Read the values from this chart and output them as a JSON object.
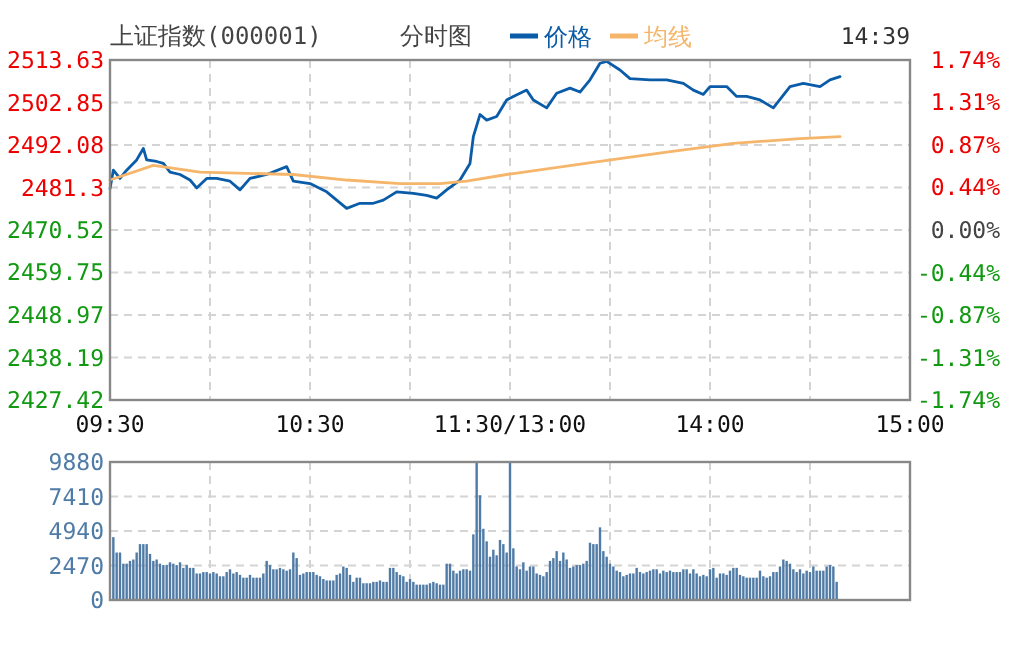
{
  "chart_data": [
    {
      "type": "line",
      "title": "上证指数(000001)",
      "subtitle": "分时图",
      "annotations": [
        "14:39"
      ],
      "legend": "top",
      "grid": true,
      "categories": [
        "09:30",
        null,
        null,
        null,
        null,
        null,
        null,
        null,
        null,
        null,
        null,
        null,
        null,
        null,
        null,
        null,
        null,
        null,
        null,
        null,
        null,
        null,
        null,
        null,
        null,
        null,
        null,
        null,
        null,
        null,
        null,
        null,
        null,
        null,
        null,
        null,
        null,
        null,
        null,
        null,
        null,
        null,
        null,
        null,
        null,
        null,
        null,
        null,
        null,
        null,
        null,
        null,
        null,
        null,
        null,
        null,
        null,
        null,
        null,
        null,
        "10:30",
        null,
        null,
        null,
        null,
        null,
        null,
        null,
        null,
        null,
        null,
        null,
        null,
        null,
        null,
        null,
        null,
        null,
        null,
        null,
        null,
        null,
        null,
        null,
        null,
        null,
        null,
        null,
        null,
        null,
        null,
        null,
        null,
        null,
        null,
        null,
        null,
        null,
        null,
        null,
        null,
        null,
        null,
        null,
        null,
        null,
        null,
        null,
        null,
        null,
        null,
        null,
        null,
        null,
        null,
        null,
        null,
        null,
        null,
        null,
        "11:30/13:00",
        null,
        null,
        null,
        null,
        null,
        null,
        null,
        null,
        null,
        null,
        null,
        null,
        null,
        null,
        null,
        null,
        null,
        null,
        null,
        null,
        null,
        null,
        null,
        null,
        null,
        null,
        null,
        null,
        null,
        null,
        null,
        null,
        null,
        null,
        null,
        null,
        null,
        null,
        null,
        null,
        null,
        null,
        null,
        null,
        null,
        null,
        null,
        null,
        null,
        null,
        null,
        null,
        null,
        null,
        null,
        null,
        null,
        null,
        null,
        "14:00",
        null,
        null,
        null,
        null,
        null,
        null,
        null,
        null,
        null,
        null,
        null,
        null,
        null,
        null,
        null,
        null,
        null,
        null,
        null,
        null,
        null,
        null,
        null,
        null,
        null,
        null,
        null,
        null,
        null,
        null,
        null,
        null,
        null,
        null,
        null,
        null,
        null,
        null,
        null,
        null,
        null,
        null,
        null,
        null,
        null,
        null,
        null,
        null,
        null,
        null,
        null,
        null,
        null,
        null,
        null,
        null,
        null,
        null,
        null,
        "15:00"
      ],
      "ylim": [
        2427.42,
        2513.63
      ],
      "yticks": [
        2427.42,
        2438.19,
        2448.97,
        2459.75,
        2470.52,
        2481.3,
        2492.08,
        2502.85,
        2513.63
      ],
      "y2lim": [
        -1.74,
        1.74
      ],
      "y2ticks": [
        {
          "value": -1.74,
          "label": "-1.74%"
        },
        {
          "value": -1.31,
          "label": "-1.31%"
        },
        {
          "value": -0.87,
          "label": "-0.87%"
        },
        {
          "value": -0.44,
          "label": "-0.44%"
        },
        {
          "value": 0,
          "label": "0.00%"
        },
        {
          "value": 0.44,
          "label": "0.44%"
        },
        {
          "value": 0.87,
          "label": "0.87%"
        },
        {
          "value": 1.31,
          "label": "1.31%"
        },
        {
          "value": 1.74,
          "label": "1.74%"
        }
      ],
      "series": [
        {
          "name": "价格",
          "color": "#0b5ca8",
          "values": [
            2481.0,
            2485.7,
            null,
            2483.6,
            null,
            2485.7,
            null,
            null,
            2488.3,
            null,
            2491.2,
            2488.3,
            null,
            null,
            2487.9,
            null,
            2487.4,
            null,
            2485.2,
            null,
            null,
            2484.6,
            null,
            null,
            2483.2,
            null,
            2481.2,
            null,
            null,
            2483.6,
            null,
            null,
            2483.6,
            null,
            null,
            null,
            2482.9,
            null,
            null,
            2480.7,
            null,
            null,
            2483.6,
            null,
            null,
            null,
            null,
            2484.6,
            null,
            null,
            null,
            null,
            null,
            2486.6,
            null,
            2482.9,
            null,
            null,
            null,
            null,
            2482.3,
            null,
            null,
            null,
            null,
            2480.2,
            null,
            null,
            2478.1,
            null,
            null,
            2476.0,
            null,
            null,
            null,
            2477.3,
            null,
            null,
            null,
            2477.3,
            null,
            null,
            2478.1,
            null,
            null,
            null,
            2480.2,
            null,
            null,
            null,
            null,
            2479.8,
            null,
            null,
            null,
            2479.3,
            null,
            null,
            2478.6,
            null,
            null,
            2480.7,
            null,
            null,
            null,
            2483.2,
            null,
            null,
            2487.4,
            2494.2,
            null,
            2499.8,
            null,
            2498.4,
            null,
            null,
            2499.3,
            null,
            null,
            2503.5,
            null,
            2504.4,
            null,
            null,
            null,
            2506.0,
            null,
            2503.5,
            null,
            null,
            null,
            2501.5,
            null,
            null,
            2505.2,
            null,
            null,
            null,
            2506.5,
            null,
            null,
            2505.5,
            null,
            null,
            2508.6,
            null,
            null,
            2512.8,
            null,
            2513.3,
            null,
            null,
            null,
            2511.1,
            null,
            null,
            2508.9,
            null,
            null,
            null,
            null,
            null,
            2508.6,
            null,
            null,
            null,
            null,
            2508.6,
            null,
            null,
            null,
            null,
            2507.7,
            null,
            null,
            2506.0,
            null,
            null,
            2504.9,
            null,
            2506.9,
            null,
            null,
            null,
            null,
            2506.9,
            null,
            null,
            2504.4,
            null,
            null,
            2504.4,
            null,
            null,
            null,
            2503.5,
            null,
            null,
            null,
            2501.5,
            null,
            null,
            null,
            null,
            2506.9,
            null,
            null,
            null,
            2507.7,
            null,
            null,
            null,
            null,
            2506.9,
            null,
            null,
            2508.6,
            null,
            null,
            2509.4,
            null,
            null,
            null,
            null,
            null,
            null,
            null,
            null,
            null,
            null,
            null,
            null,
            null,
            null,
            null,
            null,
            null,
            null,
            null,
            null,
            null
          ]
        },
        {
          "name": "均线",
          "color": "#f5b66b",
          "values": [
            2483.2,
            null,
            null,
            null,
            null,
            null,
            null,
            null,
            null,
            null,
            null,
            null,
            null,
            2486.9,
            null,
            null,
            null,
            null,
            null,
            null,
            null,
            null,
            null,
            null,
            null,
            null,
            null,
            2485.2,
            null,
            null,
            null,
            null,
            null,
            null,
            null,
            null,
            null,
            null,
            null,
            null,
            null,
            null,
            null,
            null,
            null,
            null,
            null,
            null,
            null,
            null,
            null,
            null,
            null,
            null,
            null,
            2484.6,
            null,
            null,
            null,
            null,
            null,
            null,
            null,
            null,
            null,
            null,
            null,
            null,
            null,
            null,
            null,
            2483.2,
            null,
            null,
            null,
            null,
            null,
            null,
            null,
            null,
            null,
            null,
            null,
            null,
            null,
            null,
            null,
            2482.3,
            null,
            null,
            null,
            null,
            null,
            null,
            null,
            null,
            null,
            null,
            null,
            2482.3,
            null,
            null,
            null,
            null,
            null,
            null,
            null,
            2482.9,
            null,
            null,
            null,
            null,
            null,
            null,
            null,
            null,
            null,
            null,
            null,
            2484.6,
            null,
            null,
            null,
            null,
            null,
            null,
            null,
            null,
            null,
            null,
            null,
            null,
            null,
            null,
            null,
            null,
            null,
            null,
            null,
            null,
            null,
            null,
            null,
            null,
            null,
            null,
            null,
            2487.9,
            null,
            null,
            null,
            null,
            null,
            null,
            null,
            null,
            null,
            null,
            null,
            null,
            null,
            null,
            null,
            null,
            null,
            null,
            null,
            2490.3,
            null,
            null,
            null,
            null,
            null,
            null,
            null,
            null,
            null,
            null,
            null,
            null,
            null,
            null,
            null,
            null,
            null,
            null,
            null,
            2492.5,
            null,
            null,
            null,
            null,
            null,
            null,
            null,
            null,
            null,
            null,
            null,
            null,
            null,
            null,
            null,
            null,
            null,
            null,
            null,
            2493.7,
            null,
            null,
            null,
            null,
            null,
            null,
            null,
            null,
            null,
            null,
            null,
            2494.2,
            null,
            null,
            null,
            null,
            null,
            null,
            null,
            null,
            null,
            null,
            null,
            null,
            null,
            null,
            null,
            null,
            null,
            null,
            null,
            null,
            null
          ]
        }
      ]
    },
    {
      "type": "bar",
      "grid": true,
      "tick_labels": "y",
      "categories": [
        null,
        null,
        null,
        null,
        null,
        null,
        null,
        null,
        null,
        null,
        null,
        null,
        null,
        null,
        null,
        null,
        null,
        null,
        null,
        null,
        null,
        null,
        null,
        null,
        null,
        null,
        null,
        null,
        null,
        null,
        null,
        null,
        null,
        null,
        null,
        null,
        null,
        null,
        null,
        null,
        null,
        null,
        null,
        null,
        null,
        null,
        null,
        null,
        null,
        null,
        null,
        null,
        null,
        null,
        null,
        null,
        null,
        null,
        null,
        null,
        null,
        null,
        null,
        null,
        null,
        null,
        null,
        null,
        null,
        null,
        null,
        null,
        null,
        null,
        null,
        null,
        null,
        null,
        null,
        null,
        null,
        null,
        null,
        null,
        null,
        null,
        null,
        null,
        null,
        null,
        null,
        null,
        null,
        null,
        null,
        null,
        null,
        null,
        null,
        null,
        null,
        null,
        null,
        null,
        null,
        null,
        null,
        null,
        null,
        null,
        null,
        null,
        null,
        null,
        null,
        null,
        null,
        null,
        null,
        null,
        null,
        null,
        null,
        null,
        null,
        null,
        null,
        null,
        null,
        null,
        null,
        null,
        null,
        null,
        null,
        null,
        null,
        null,
        null,
        null,
        null,
        null,
        null,
        null,
        null,
        null,
        null,
        null,
        null,
        null,
        null,
        null,
        null,
        null,
        null,
        null,
        null,
        null,
        null,
        null,
        null,
        null,
        null,
        null,
        null,
        null,
        null,
        null,
        null,
        null,
        null,
        null,
        null,
        null,
        null,
        null,
        null,
        null,
        null,
        null,
        null,
        null,
        null,
        null,
        null,
        null,
        null,
        null,
        null,
        null,
        null,
        null,
        null,
        null,
        null,
        null,
        null,
        null,
        null,
        null,
        null,
        null,
        null,
        null,
        null,
        null,
        null,
        null,
        null,
        null,
        null,
        null,
        null,
        null,
        null,
        null,
        null,
        null,
        null,
        null,
        null,
        null,
        null,
        null,
        null,
        null,
        null,
        null,
        null,
        null,
        null,
        null,
        null,
        null,
        null,
        null,
        null,
        null,
        null,
        null,
        null
      ],
      "ylim": [
        0,
        9880
      ],
      "yticks": [
        0,
        2470,
        4940,
        7410,
        9880
      ],
      "series": [
        {
          "color": "#4f7ba6",
          "values": [
            null,
            4500,
            3400,
            3400,
            2600,
            2600,
            2800,
            2900,
            3400,
            4000,
            4000,
            4000,
            3300,
            2800,
            2900,
            2600,
            2500,
            2500,
            2700,
            2600,
            2500,
            2700,
            2300,
            2500,
            2300,
            2300,
            1900,
            1900,
            2000,
            2000,
            1900,
            2000,
            1900,
            1700,
            1700,
            2000,
            2200,
            1900,
            2000,
            1800,
            1600,
            1600,
            1800,
            1600,
            1600,
            1600,
            1900,
            2800,
            2500,
            2200,
            2200,
            2300,
            2200,
            2100,
            2200,
            3400,
            3000,
            1800,
            1900,
            2000,
            2000,
            2000,
            1800,
            1700,
            1500,
            1400,
            1400,
            1400,
            1800,
            1900,
            2400,
            2300,
            1800,
            1300,
            1600,
            1600,
            1200,
            1200,
            1200,
            1300,
            1300,
            1400,
            1300,
            1300,
            2300,
            2300,
            2000,
            1800,
            1700,
            1300,
            1500,
            1300,
            1100,
            1100,
            1100,
            1100,
            1200,
            1300,
            1200,
            1100,
            1100,
            2600,
            2600,
            2100,
            1900,
            2100,
            2200,
            2200,
            2100,
            4700,
            9880,
            7500,
            5100,
            4200,
            3100,
            3600,
            3200,
            4300,
            4000,
            3400,
            9880,
            3700,
            2400,
            2200,
            2700,
            2100,
            2400,
            2400,
            1900,
            1800,
            1700,
            2000,
            2800,
            3000,
            3500,
            2800,
            3400,
            2900,
            2300,
            2400,
            2500,
            2500,
            2600,
            2800,
            4100,
            4000,
            4000,
            5200,
            3500,
            3100,
            2600,
            2400,
            2100,
            2000,
            1700,
            1800,
            1900,
            1900,
            2300,
            2000,
            1900,
            2000,
            2100,
            2200,
            2200,
            1900,
            2100,
            2000,
            2100,
            2000,
            2000,
            2000,
            2200,
            2200,
            1900,
            2200,
            1900,
            1700,
            1800,
            1700,
            2200,
            2300,
            1600,
            1900,
            1900,
            1800,
            2100,
            2300,
            2300,
            1800,
            1700,
            1600,
            1600,
            1600,
            1600,
            2100,
            1700,
            1600,
            1700,
            2000,
            2000,
            2400,
            2900,
            2800,
            2600,
            2200,
            2000,
            2200,
            1900,
            2100,
            2000,
            2400,
            2100,
            2100,
            2100,
            2400,
            2500,
            2400,
            1300,
            null,
            null,
            null,
            null,
            null,
            null,
            null,
            null,
            null,
            null,
            null,
            null,
            null,
            null,
            null,
            null,
            null,
            null,
            null,
            null,
            null,
            null
          ]
        }
      ]
    }
  ]
}
